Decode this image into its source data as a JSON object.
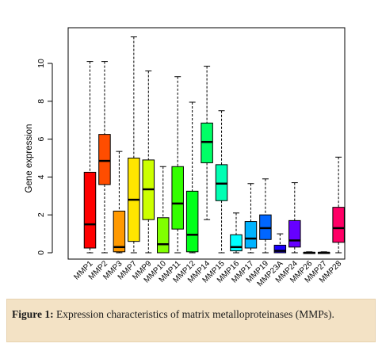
{
  "caption": {
    "label": "Figure 1:",
    "text": "Expression characteristics of matrix metalloproteinases (MMPs)."
  },
  "chart_data": {
    "type": "boxplot",
    "ylabel": "Gene expression",
    "xlabel": "",
    "ylim": [
      0,
      11.5
    ],
    "yticks": [
      0,
      2,
      4,
      6,
      8,
      10
    ],
    "categories": [
      "MMP1",
      "MMP2",
      "MMP3",
      "MMP7",
      "MMP9",
      "MMP10",
      "MMP11",
      "MMP12",
      "MMP14",
      "MMP15",
      "MMP16",
      "MMP17",
      "MMP19",
      "MMP23A",
      "MMP24",
      "MMP26",
      "MMP27",
      "MMP28"
    ],
    "series": [
      {
        "category": "MMP1",
        "color": "#ff0000",
        "min": 0.0,
        "q1": 0.25,
        "median": 1.5,
        "q3": 4.25,
        "max": 10.1
      },
      {
        "category": "MMP2",
        "color": "#ff4d00",
        "min": 0.0,
        "q1": 3.6,
        "median": 4.85,
        "q3": 6.25,
        "max": 10.1
      },
      {
        "category": "MMP3",
        "color": "#ff9900",
        "min": 0.0,
        "q1": 0.05,
        "median": 0.3,
        "q3": 2.2,
        "max": 5.35
      },
      {
        "category": "MMP7",
        "color": "#ffe600",
        "min": 0.0,
        "q1": 0.6,
        "median": 2.8,
        "q3": 5.0,
        "max": 11.4
      },
      {
        "category": "MMP9",
        "color": "#ccff00",
        "min": 0.0,
        "q1": 1.75,
        "median": 3.35,
        "q3": 4.9,
        "max": 9.6
      },
      {
        "category": "MMP10",
        "color": "#80ff00",
        "min": 0.0,
        "q1": 0.0,
        "median": 0.45,
        "q3": 1.85,
        "max": 4.55
      },
      {
        "category": "MMP11",
        "color": "#33ff00",
        "min": 0.0,
        "q1": 1.25,
        "median": 2.6,
        "q3": 4.55,
        "max": 9.3
      },
      {
        "category": "MMP12",
        "color": "#00ff1a",
        "min": 0.0,
        "q1": 0.05,
        "median": 0.95,
        "q3": 3.25,
        "max": 7.95
      },
      {
        "category": "MMP14",
        "color": "#00ff66",
        "min": 1.75,
        "q1": 4.75,
        "median": 5.85,
        "q3": 6.85,
        "max": 9.85
      },
      {
        "category": "MMP15",
        "color": "#00ffb3",
        "min": 0.0,
        "q1": 2.75,
        "median": 3.65,
        "q3": 4.65,
        "max": 7.5
      },
      {
        "category": "MMP16",
        "color": "#00ffff",
        "min": 0.0,
        "q1": 0.1,
        "median": 0.3,
        "q3": 0.95,
        "max": 2.1
      },
      {
        "category": "MMP17",
        "color": "#00b3ff",
        "min": 0.0,
        "q1": 0.25,
        "median": 0.75,
        "q3": 1.65,
        "max": 3.65
      },
      {
        "category": "MMP19",
        "color": "#0066ff",
        "min": 0.0,
        "q1": 0.7,
        "median": 1.3,
        "q3": 2.0,
        "max": 3.9
      },
      {
        "category": "MMP23A",
        "color": "#1a00ff",
        "min": 0.0,
        "q1": 0.0,
        "median": 0.1,
        "q3": 0.4,
        "max": 1.0
      },
      {
        "category": "MMP24",
        "color": "#6600ff",
        "min": 0.0,
        "q1": 0.3,
        "median": 0.65,
        "q3": 1.7,
        "max": 3.7
      },
      {
        "category": "MMP26",
        "color": "#b300ff",
        "min": 0.0,
        "q1": 0.0,
        "median": 0.0,
        "q3": 0.02,
        "max": 0.05
      },
      {
        "category": "MMP27",
        "color": "#ff00e6",
        "min": 0.0,
        "q1": 0.0,
        "median": 0.0,
        "q3": 0.02,
        "max": 0.05
      },
      {
        "category": "MMP28",
        "color": "#ff0066",
        "min": 0.0,
        "q1": 0.55,
        "median": 1.3,
        "q3": 2.4,
        "max": 5.05
      }
    ]
  }
}
